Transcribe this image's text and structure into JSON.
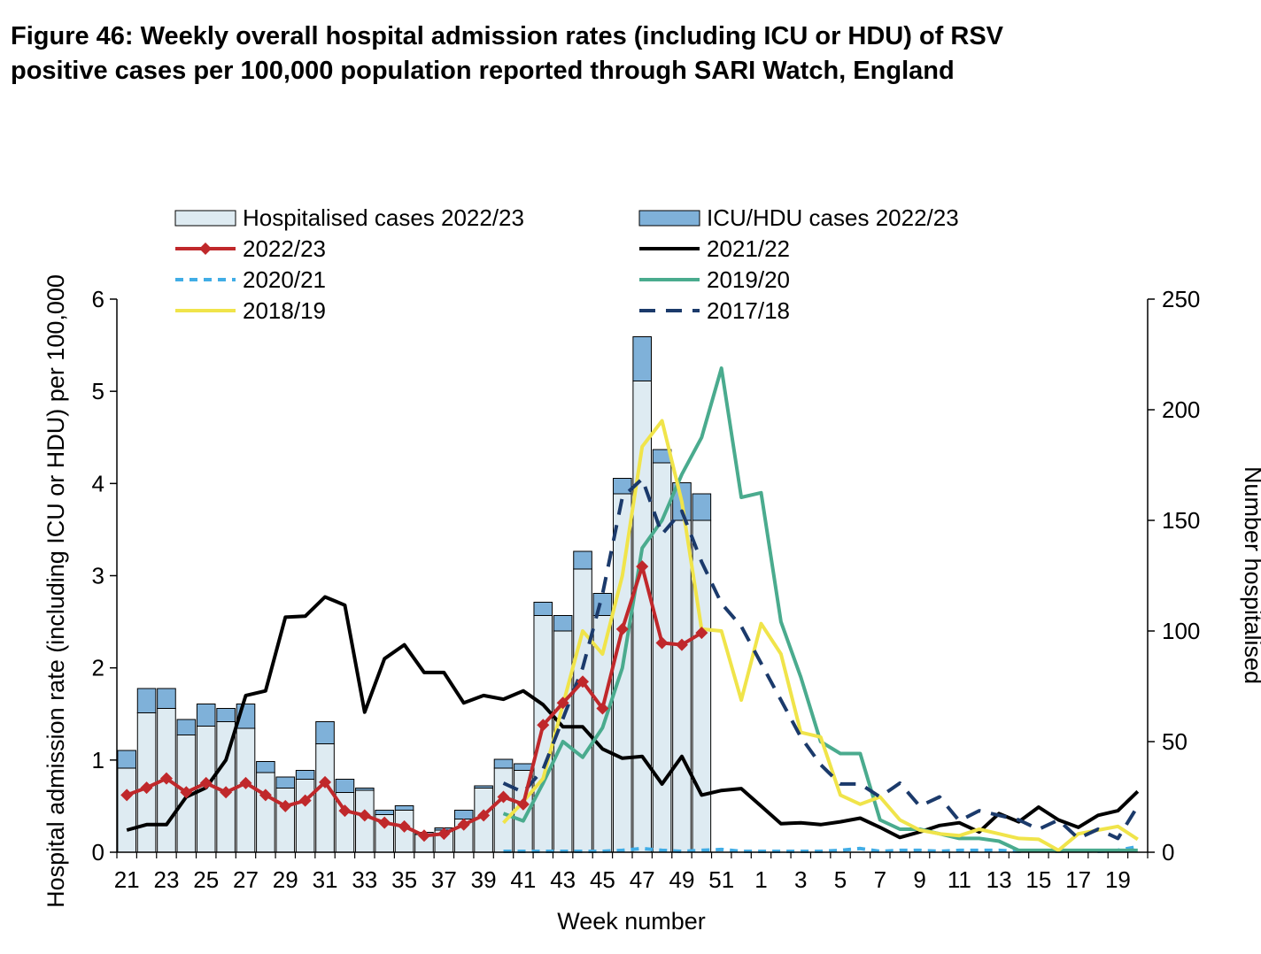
{
  "figure": {
    "title_line1": "Figure 46: Weekly overall hospital admission rates (including ICU or HDU) of RSV",
    "title_line2": "positive cases per 100,000 population reported through SARI Watch, England"
  },
  "chart_data": {
    "type": "bar",
    "xlabel": "Week number",
    "ylabel": "Hospital admission rate (including ICU or HDU) per 100,000",
    "y2label": "Number hospitalised",
    "ylim": [
      0,
      6
    ],
    "y2lim": [
      0,
      250
    ],
    "yticks": [
      0,
      1,
      2,
      3,
      4,
      5,
      6
    ],
    "y2ticks": [
      0,
      50,
      100,
      150,
      200,
      250
    ],
    "weeks": [
      21,
      22,
      23,
      24,
      25,
      26,
      27,
      28,
      29,
      30,
      31,
      32,
      33,
      34,
      35,
      36,
      37,
      38,
      39,
      40,
      41,
      42,
      43,
      44,
      45,
      46,
      47,
      48,
      49,
      50,
      51,
      52,
      1,
      2,
      3,
      4,
      5,
      6,
      7,
      8,
      9,
      10,
      11,
      12,
      13,
      14,
      15,
      16,
      17,
      18,
      19,
      20
    ],
    "xtick_labels": [
      "21",
      "23",
      "25",
      "27",
      "29",
      "31",
      "33",
      "35",
      "37",
      "39",
      "41",
      "43",
      "45",
      "47",
      "49",
      "51",
      "1",
      "3",
      "5",
      "7",
      "9",
      "11",
      "13",
      "15",
      "17",
      "19"
    ],
    "legend_position": "top",
    "grid": false,
    "bar_series": [
      {
        "name": "Hospitalised cases 2022/23",
        "axis": "right",
        "color": "#deebf2",
        "values": [
          38,
          63,
          65,
          53,
          57,
          59,
          56,
          36,
          29,
          33,
          49,
          27,
          28,
          17,
          19,
          8,
          10,
          15,
          29,
          38,
          37,
          107,
          100,
          128,
          107,
          162,
          213,
          176,
          150,
          150
        ]
      },
      {
        "name": "ICU/HDU cases 2022/23",
        "axis": "right",
        "color": "#7fb1d9",
        "values": [
          8,
          11,
          9,
          7,
          10,
          6,
          11,
          5,
          5,
          4,
          10,
          6,
          1,
          2,
          2,
          1,
          1,
          4,
          1,
          4,
          3,
          6,
          7,
          8,
          10,
          7,
          20,
          6,
          17,
          12
        ]
      }
    ],
    "line_series": [
      {
        "name": "2022/23",
        "style": "line-diamond",
        "color": "#c0282b",
        "values": [
          0.62,
          0.7,
          0.8,
          0.65,
          0.75,
          0.65,
          0.75,
          0.62,
          0.5,
          0.56,
          0.76,
          0.45,
          0.4,
          0.32,
          0.28,
          0.18,
          0.2,
          0.3,
          0.4,
          0.6,
          0.52,
          1.38,
          1.62,
          1.85,
          1.56,
          2.42,
          3.1,
          2.27,
          2.25,
          2.38
        ]
      },
      {
        "name": "2021/22",
        "style": "solid",
        "color": "#000000",
        "values": [
          0.24,
          0.3,
          0.3,
          0.6,
          0.7,
          1.0,
          1.7,
          1.75,
          2.55,
          2.56,
          2.77,
          2.68,
          1.52,
          2.1,
          2.25,
          1.95,
          1.95,
          1.62,
          1.7,
          1.66,
          1.75,
          1.6,
          1.36,
          1.36,
          1.12,
          1.02,
          1.04,
          0.74,
          1.04,
          0.62,
          0.67,
          0.69,
          0.5,
          0.31,
          0.32,
          0.3,
          0.33,
          0.37,
          0.27,
          0.16,
          0.22,
          0.29,
          0.32,
          0.22,
          0.42,
          0.33,
          0.49,
          0.35,
          0.27,
          0.4,
          0.45,
          0.66
        ]
      },
      {
        "name": "2020/21",
        "style": "dashed",
        "color": "#41ade6",
        "values": [
          null,
          null,
          null,
          null,
          null,
          null,
          null,
          null,
          null,
          null,
          null,
          null,
          null,
          null,
          null,
          null,
          null,
          null,
          null,
          0.01,
          0.01,
          0.01,
          0.01,
          0.01,
          0.01,
          0.02,
          0.04,
          0.02,
          0.01,
          0.02,
          0.03,
          0.01,
          0.01,
          0.01,
          0.01,
          0.01,
          0.02,
          0.04,
          0.01,
          0.02,
          0.02,
          0.01,
          0.02,
          0.02,
          0.02,
          0.01,
          0.02,
          0.01,
          0.02,
          0.01,
          0.02,
          0.06
        ]
      },
      {
        "name": "2019/20",
        "style": "solid",
        "color": "#4aab8e",
        "values": [
          null,
          null,
          null,
          null,
          null,
          null,
          null,
          null,
          null,
          null,
          null,
          null,
          null,
          null,
          null,
          null,
          null,
          null,
          null,
          0.42,
          0.34,
          0.75,
          1.2,
          1.03,
          1.35,
          2.0,
          3.3,
          3.6,
          4.1,
          4.5,
          5.25,
          3.85,
          3.9,
          2.5,
          1.9,
          1.2,
          1.07,
          1.07,
          0.35,
          0.25,
          0.25,
          0.2,
          0.15,
          0.15,
          0.12,
          0.02,
          0.02,
          0.02,
          0.02,
          0.02,
          0.02,
          0.02
        ]
      },
      {
        "name": "2018/19",
        "style": "solid",
        "color": "#f0e44a",
        "values": [
          null,
          null,
          null,
          null,
          null,
          null,
          null,
          null,
          null,
          null,
          null,
          null,
          null,
          null,
          null,
          null,
          null,
          null,
          null,
          0.32,
          0.55,
          0.8,
          1.6,
          2.4,
          2.15,
          3.0,
          4.4,
          4.68,
          3.8,
          2.42,
          2.4,
          1.65,
          2.48,
          2.15,
          1.3,
          1.25,
          0.62,
          0.52,
          0.6,
          0.35,
          0.24,
          0.2,
          0.18,
          0.25,
          0.2,
          0.15,
          0.14,
          0.02,
          0.2,
          0.24,
          0.28,
          0.14
        ]
      },
      {
        "name": "2017/18",
        "style": "dashed",
        "color": "#1b3a6b",
        "values": [
          null,
          null,
          null,
          null,
          null,
          null,
          null,
          null,
          null,
          null,
          null,
          null,
          null,
          null,
          null,
          null,
          null,
          null,
          null,
          0.75,
          0.65,
          0.9,
          1.45,
          2.0,
          2.8,
          3.85,
          4.05,
          3.45,
          3.7,
          3.15,
          2.7,
          2.45,
          2.05,
          1.65,
          1.25,
          0.95,
          0.74,
          0.74,
          0.6,
          0.75,
          0.5,
          0.6,
          0.34,
          0.45,
          0.4,
          0.35,
          0.25,
          0.35,
          0.15,
          0.25,
          0.15,
          0.5
        ]
      }
    ]
  }
}
